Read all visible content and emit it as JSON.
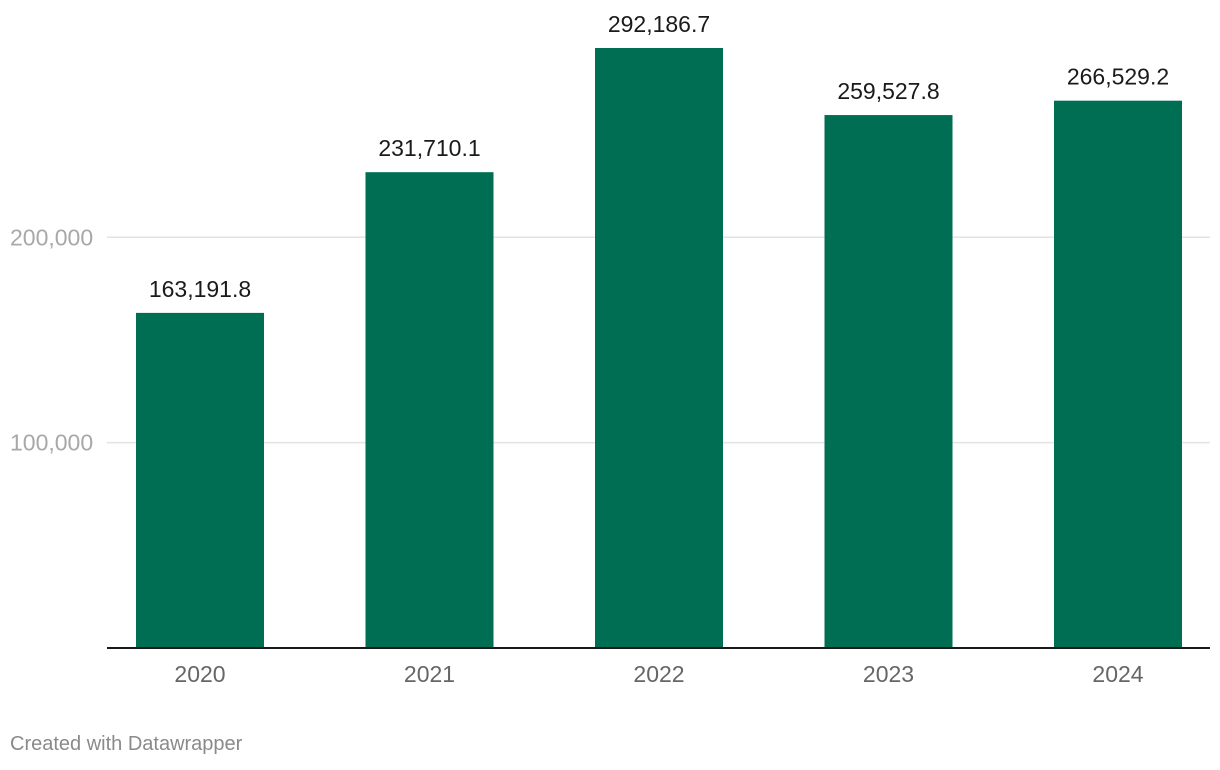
{
  "chart_data": {
    "type": "bar",
    "categories": [
      "2020",
      "2021",
      "2022",
      "2023",
      "2024"
    ],
    "values": [
      163191.8,
      231710.1,
      292186.7,
      259527.8,
      266529.2
    ],
    "data_labels": [
      "163,191.8",
      "231,710.1",
      "292,186.7",
      "259,527.8",
      "266,529.2"
    ],
    "yticks": [
      100000,
      200000
    ],
    "ytick_labels": [
      "100,000",
      "200,000"
    ],
    "ylim": [
      0,
      292186.7
    ],
    "bar_color": "#006e52",
    "grid": true,
    "legend": "none",
    "title": "",
    "xlabel": "",
    "ylabel": ""
  },
  "footer": {
    "credit": "Created with Datawrapper"
  }
}
